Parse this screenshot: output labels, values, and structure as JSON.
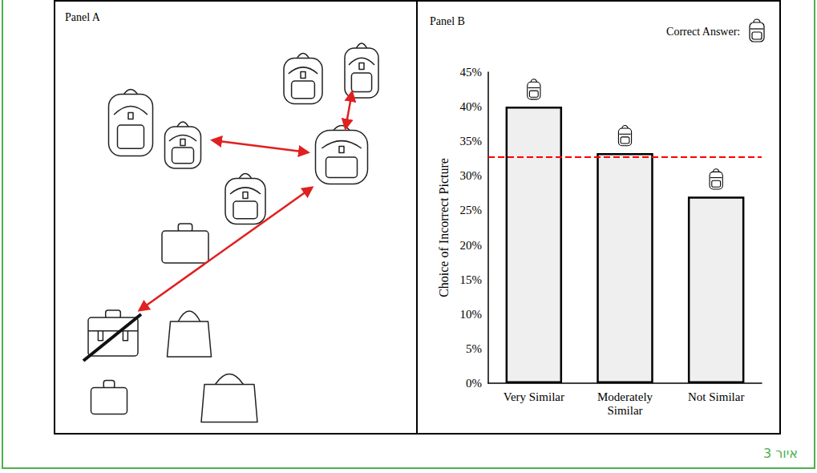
{
  "panel_a": {
    "title": "Panel A"
  },
  "chart_data": {
    "type": "bar",
    "title": "Panel B",
    "annotation": "Correct Answer:",
    "y_label": "Choice of Incorrect Picture",
    "categories": [
      "Very Similar",
      "Moderately Similar",
      "Not Similar"
    ],
    "values": [
      40,
      33.3,
      27
    ],
    "color": "#efefef",
    "ylim": [
      0,
      45
    ],
    "yticks": [
      {
        "value": 0,
        "label": "0%"
      },
      {
        "value": 5,
        "label": "5%"
      },
      {
        "value": 10,
        "label": "10%"
      },
      {
        "value": 15,
        "label": "15%"
      },
      {
        "value": 20,
        "label": "20%"
      },
      {
        "value": 25,
        "label": "25%"
      },
      {
        "value": 30,
        "label": "30%"
      },
      {
        "value": 35,
        "label": "35%"
      },
      {
        "value": 40,
        "label": "40%"
      },
      {
        "value": 45,
        "label": "45%"
      }
    ],
    "grid": false,
    "reference_line": {
      "value": 32.7,
      "color": "#ff0000",
      "line_style": "dashed"
    }
  },
  "caption": "איור 3"
}
